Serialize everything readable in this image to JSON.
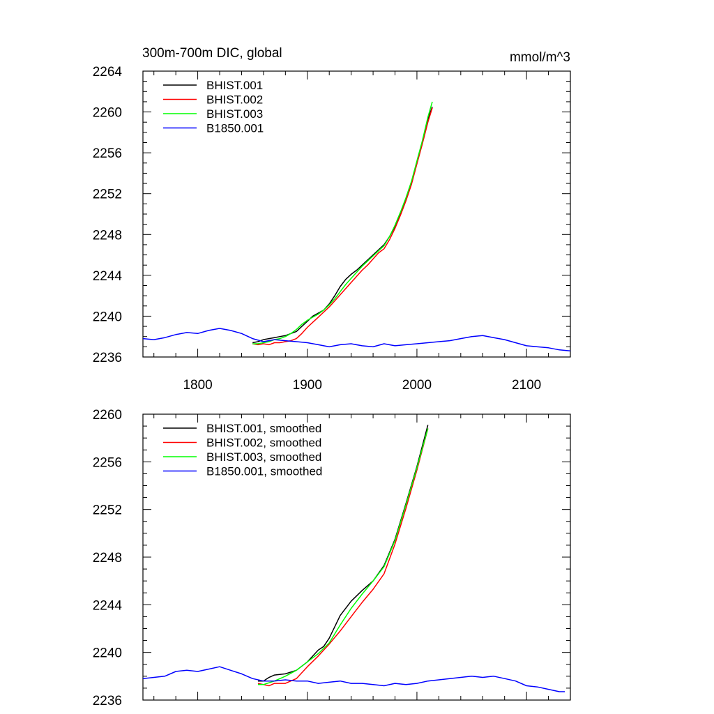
{
  "chart_data": [
    {
      "type": "line",
      "title": "300m-700m DIC, global",
      "units": "mmol/m^3",
      "xlim": [
        1750,
        2140
      ],
      "ylim": [
        2236,
        2264
      ],
      "xticks": [
        1800,
        1900,
        2000,
        2100
      ],
      "xtick_labels": [
        "1800",
        "1900",
        "2000",
        "2100"
      ],
      "yticks": [
        2236,
        2240,
        2244,
        2248,
        2252,
        2256,
        2260,
        2264
      ],
      "ytick_labels": [
        "2236",
        "2240",
        "2244",
        "2248",
        "2252",
        "2256",
        "2260",
        "2264"
      ],
      "legend_position": "top-left",
      "grid": false,
      "series": [
        {
          "name": "BHIST.001",
          "color": "#000000",
          "x": [
            1850,
            1855,
            1860,
            1865,
            1870,
            1875,
            1880,
            1885,
            1890,
            1895,
            1900,
            1905,
            1910,
            1915,
            1920,
            1925,
            1930,
            1935,
            1940,
            1945,
            1950,
            1955,
            1960,
            1965,
            1970,
            1975,
            1980,
            1985,
            1990,
            1995,
            2000,
            2005,
            2010,
            2014
          ],
          "y": [
            2237.4,
            2237.5,
            2237.7,
            2237.8,
            2237.9,
            2238.0,
            2238.1,
            2238.3,
            2238.5,
            2239.0,
            2239.5,
            2240.0,
            2240.3,
            2240.6,
            2241.2,
            2242.0,
            2242.9,
            2243.6,
            2244.1,
            2244.5,
            2245.0,
            2245.5,
            2246.0,
            2246.5,
            2247.0,
            2247.8,
            2248.8,
            2250.0,
            2251.4,
            2253.0,
            2255.0,
            2257.0,
            2259.3,
            2260.5
          ]
        },
        {
          "name": "BHIST.002",
          "color": "#ff0000",
          "x": [
            1850,
            1855,
            1860,
            1865,
            1870,
            1875,
            1880,
            1885,
            1890,
            1895,
            1900,
            1905,
            1910,
            1915,
            1920,
            1925,
            1930,
            1935,
            1940,
            1945,
            1950,
            1955,
            1960,
            1965,
            1970,
            1975,
            1980,
            1985,
            1990,
            1995,
            2000,
            2005,
            2010,
            2014
          ],
          "y": [
            2237.3,
            2237.2,
            2237.3,
            2237.2,
            2237.4,
            2237.4,
            2237.5,
            2237.6,
            2237.8,
            2238.3,
            2238.9,
            2239.4,
            2239.9,
            2240.4,
            2240.9,
            2241.5,
            2242.1,
            2242.7,
            2243.3,
            2243.9,
            2244.5,
            2245.0,
            2245.6,
            2246.2,
            2246.6,
            2247.5,
            2248.6,
            2249.9,
            2251.3,
            2252.9,
            2254.9,
            2256.9,
            2259.0,
            2260.4
          ]
        },
        {
          "name": "BHIST.003",
          "color": "#00ff00",
          "x": [
            1850,
            1855,
            1860,
            1865,
            1870,
            1875,
            1880,
            1885,
            1890,
            1895,
            1900,
            1905,
            1910,
            1915,
            1920,
            1925,
            1930,
            1935,
            1940,
            1945,
            1950,
            1955,
            1960,
            1965,
            1970,
            1975,
            1980,
            1985,
            1990,
            1995,
            2000,
            2005,
            2010,
            2014
          ],
          "y": [
            2237.3,
            2237.3,
            2237.4,
            2237.5,
            2237.7,
            2237.8,
            2238.0,
            2238.3,
            2238.7,
            2239.2,
            2239.6,
            2239.9,
            2240.2,
            2240.6,
            2241.1,
            2241.7,
            2242.4,
            2243.1,
            2243.7,
            2244.3,
            2244.9,
            2245.4,
            2245.9,
            2246.4,
            2246.9,
            2247.8,
            2248.9,
            2250.2,
            2251.6,
            2253.2,
            2255.2,
            2257.2,
            2259.5,
            2261.0
          ]
        },
        {
          "name": "B1850.001",
          "color": "#0000ff",
          "x": [
            1750,
            1760,
            1770,
            1780,
            1790,
            1800,
            1810,
            1820,
            1830,
            1840,
            1850,
            1860,
            1870,
            1880,
            1890,
            1900,
            1910,
            1920,
            1930,
            1940,
            1950,
            1960,
            1970,
            1980,
            1990,
            2000,
            2010,
            2020,
            2030,
            2040,
            2050,
            2060,
            2070,
            2080,
            2090,
            2100,
            2110,
            2120,
            2130,
            2140
          ],
          "y": [
            2237.8,
            2237.7,
            2237.9,
            2238.2,
            2238.4,
            2238.3,
            2238.6,
            2238.8,
            2238.6,
            2238.3,
            2237.8,
            2237.5,
            2237.7,
            2237.6,
            2237.5,
            2237.4,
            2237.2,
            2237.0,
            2237.2,
            2237.3,
            2237.1,
            2237.0,
            2237.3,
            2237.1,
            2237.2,
            2237.3,
            2237.4,
            2237.5,
            2237.6,
            2237.8,
            2238.0,
            2238.1,
            2237.9,
            2237.7,
            2237.4,
            2237.1,
            2237.0,
            2236.9,
            2236.7,
            2236.6
          ]
        }
      ]
    },
    {
      "type": "line",
      "title": "",
      "units": "",
      "xlim": [
        1750,
        2140
      ],
      "ylim": [
        2236,
        2260
      ],
      "xticks": [
        1800,
        1900,
        2000,
        2100
      ],
      "xtick_labels": [],
      "yticks": [
        2236,
        2240,
        2244,
        2248,
        2252,
        2256,
        2260
      ],
      "ytick_labels": [
        "2236",
        "2240",
        "2244",
        "2248",
        "2252",
        "2256",
        "2260"
      ],
      "legend_position": "top-left",
      "grid": false,
      "series": [
        {
          "name": "BHIST.001, smoothed",
          "color": "#000000",
          "x": [
            1855,
            1860,
            1865,
            1870,
            1880,
            1890,
            1900,
            1910,
            1915,
            1920,
            1930,
            1940,
            1950,
            1960,
            1970,
            1980,
            1990,
            2000,
            2010
          ],
          "y": [
            2237.6,
            2237.6,
            2237.9,
            2238.1,
            2238.2,
            2238.5,
            2239.2,
            2240.2,
            2240.5,
            2241.2,
            2243.1,
            2244.3,
            2245.2,
            2246.0,
            2247.3,
            2249.5,
            2252.5,
            2255.6,
            2259.1
          ]
        },
        {
          "name": "BHIST.002, smoothed",
          "color": "#ff0000",
          "x": [
            1855,
            1860,
            1865,
            1870,
            1880,
            1890,
            1900,
            1910,
            1920,
            1930,
            1940,
            1950,
            1960,
            1970,
            1980,
            1990,
            2000,
            2010
          ],
          "y": [
            2237.4,
            2237.3,
            2237.2,
            2237.4,
            2237.4,
            2237.8,
            2238.8,
            2239.7,
            2240.7,
            2241.8,
            2243.0,
            2244.2,
            2245.3,
            2246.6,
            2249.1,
            2252.1,
            2255.3,
            2258.8
          ]
        },
        {
          "name": "BHIST.003, smoothed",
          "color": "#00ff00",
          "x": [
            1855,
            1860,
            1870,
            1880,
            1890,
            1900,
            1910,
            1920,
            1930,
            1940,
            1950,
            1960,
            1970,
            1980,
            1990,
            2000,
            2010
          ],
          "y": [
            2237.3,
            2237.3,
            2237.6,
            2238.0,
            2238.5,
            2239.2,
            2239.9,
            2240.8,
            2242.3,
            2243.7,
            2244.9,
            2246.0,
            2247.2,
            2249.4,
            2252.4,
            2255.5,
            2258.8
          ]
        },
        {
          "name": "B1850.001, smoothed",
          "color": "#0000ff",
          "x": [
            1750,
            1760,
            1770,
            1780,
            1790,
            1800,
            1810,
            1820,
            1830,
            1840,
            1850,
            1860,
            1870,
            1880,
            1890,
            1900,
            1910,
            1920,
            1930,
            1940,
            1950,
            1960,
            1970,
            1980,
            1990,
            2000,
            2010,
            2020,
            2030,
            2040,
            2050,
            2060,
            2070,
            2080,
            2090,
            2100,
            2110,
            2120,
            2130,
            2135
          ],
          "y": [
            2237.8,
            2237.9,
            2238.0,
            2238.4,
            2238.5,
            2238.4,
            2238.6,
            2238.8,
            2238.5,
            2238.2,
            2237.8,
            2237.6,
            2237.6,
            2237.7,
            2237.6,
            2237.6,
            2237.4,
            2237.5,
            2237.6,
            2237.4,
            2237.4,
            2237.3,
            2237.2,
            2237.4,
            2237.3,
            2237.4,
            2237.6,
            2237.7,
            2237.8,
            2237.9,
            2238.0,
            2237.9,
            2238.0,
            2237.8,
            2237.6,
            2237.2,
            2237.1,
            2236.9,
            2236.7,
            2236.7
          ]
        }
      ]
    }
  ]
}
